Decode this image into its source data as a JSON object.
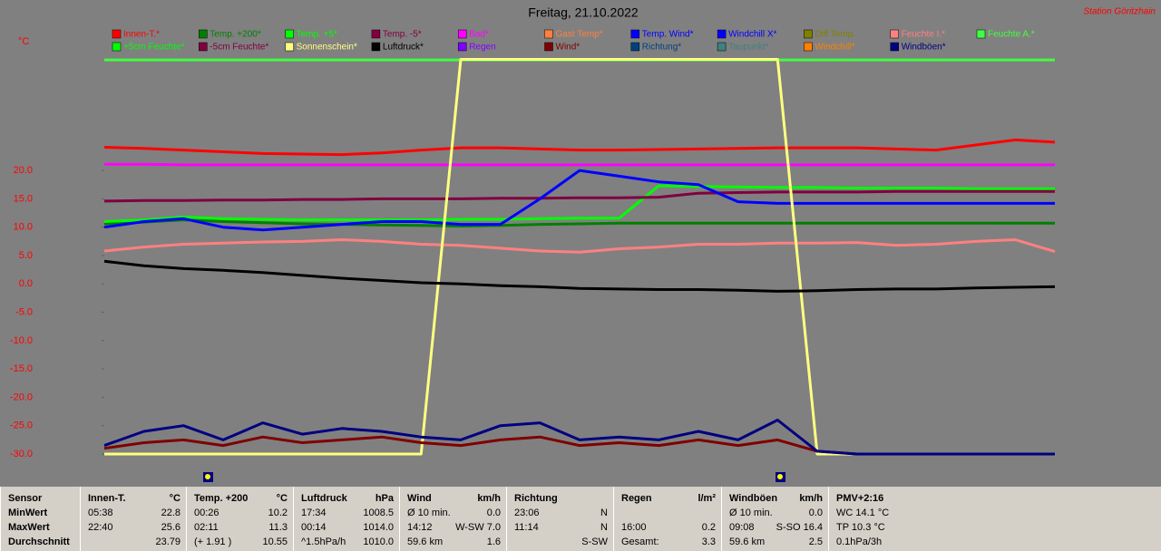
{
  "chart_data": {
    "type": "line",
    "title": "Freitag, 21.10.2022",
    "station": "Station Göritzhain",
    "y_label": "°C",
    "x": [
      0,
      1,
      2,
      3,
      4,
      5,
      6,
      7,
      8,
      9,
      10,
      11,
      12,
      13,
      14,
      15,
      16,
      17,
      18,
      19,
      20,
      21,
      22,
      23,
      24
    ],
    "xlim": [
      0,
      24
    ],
    "ylim": [
      -30,
      40
    ],
    "yticks": [
      {
        "value": 20,
        "label": "20.0"
      },
      {
        "value": 15,
        "label": "15.0"
      },
      {
        "value": 10,
        "label": "10.0"
      },
      {
        "value": 5,
        "label": "5.0"
      },
      {
        "value": 0,
        "label": "0.0"
      },
      {
        "value": -5,
        "label": "-5.0"
      },
      {
        "value": -10,
        "label": "-10.0"
      },
      {
        "value": -15,
        "label": "-15.0"
      },
      {
        "value": -20,
        "label": "-20.0"
      },
      {
        "value": -25,
        "label": "-25.0"
      },
      {
        "value": -30,
        "label": "-30.0"
      }
    ],
    "series": [
      {
        "name": "Innen-T.*",
        "color": "#ff0000",
        "values": [
          24.1,
          23.9,
          23.6,
          23.3,
          23.0,
          22.9,
          22.8,
          23.1,
          23.6,
          24.0,
          24.0,
          23.8,
          23.6,
          23.6,
          23.7,
          23.8,
          23.9,
          24.0,
          24.0,
          24.0,
          23.8,
          23.6,
          24.5,
          25.4,
          25.0
        ]
      },
      {
        "name": "Temp. +200*",
        "color": "#008000",
        "values": [
          10.6,
          10.9,
          11.3,
          11.0,
          10.8,
          10.6,
          10.5,
          10.4,
          10.3,
          10.2,
          10.3,
          10.5,
          10.6,
          10.7,
          10.7,
          10.7,
          10.7,
          10.7,
          10.7,
          10.7,
          10.7,
          10.7,
          10.7,
          10.7,
          10.7
        ]
      },
      {
        "name": "Temp. +5*",
        "color": "#00ff00",
        "values": [
          11.0,
          11.3,
          11.8,
          11.5,
          11.4,
          11.3,
          11.3,
          11.3,
          11.3,
          11.4,
          11.4,
          11.5,
          11.6,
          11.6,
          17.3,
          17.2,
          17.1,
          17.0,
          17.0,
          16.9,
          16.9,
          16.9,
          16.8,
          16.8,
          16.8
        ]
      },
      {
        "name": "Temp. -5*",
        "color": "#800040",
        "values": [
          14.6,
          14.7,
          14.7,
          14.8,
          14.8,
          14.9,
          14.9,
          15.0,
          15.0,
          15.0,
          15.1,
          15.1,
          15.2,
          15.2,
          15.3,
          16.0,
          16.1,
          16.2,
          16.2,
          16.2,
          16.3,
          16.3,
          16.3,
          16.3,
          16.3
        ]
      },
      {
        "name": "Bad*",
        "color": "#ff00ff",
        "values": [
          21.1,
          21.1,
          21.0,
          21.0,
          21.0,
          21.0,
          21.0,
          21.0,
          21.0,
          21.0,
          21.0,
          21.0,
          21.0,
          21.0,
          21.0,
          21.0,
          21.0,
          21.0,
          21.0,
          21.0,
          21.0,
          21.0,
          21.0,
          21.0,
          21.0
        ]
      },
      {
        "name": "Gast Temp*",
        "color": "#ff8040",
        "values": [
          null,
          null,
          null,
          null,
          null,
          null,
          null,
          null,
          null,
          null,
          null,
          null,
          null,
          null,
          null,
          null,
          null,
          null,
          null,
          null,
          null,
          null,
          null,
          null,
          null
        ]
      },
      {
        "name": "Temp. Wind*",
        "color": "#0000ff",
        "values": [
          10.0,
          11.0,
          11.5,
          10.0,
          9.5,
          10.0,
          10.5,
          11.0,
          11.0,
          10.5,
          10.5,
          15.0,
          20.0,
          19.0,
          18.0,
          17.5,
          14.5,
          14.2,
          14.2,
          14.2,
          14.2,
          14.2,
          14.2,
          14.2,
          14.2
        ]
      },
      {
        "name": "Windchill X*",
        "color": "#0000ff",
        "values": [
          null,
          null,
          null,
          null,
          null,
          null,
          null,
          null,
          null,
          null,
          null,
          null,
          null,
          null,
          null,
          null,
          null,
          null,
          null,
          null,
          null,
          null,
          null,
          null,
          null
        ]
      },
      {
        "name": "Diff Temp.",
        "color": "#808000",
        "values": [
          null,
          null,
          null,
          null,
          null,
          null,
          null,
          null,
          null,
          null,
          null,
          null,
          null,
          null,
          null,
          null,
          null,
          null,
          null,
          null,
          null,
          null,
          null,
          null,
          null
        ]
      },
      {
        "name": "Feuchte I.*",
        "color": "#ff8080",
        "values": [
          5.8,
          6.5,
          7.0,
          7.2,
          7.4,
          7.5,
          7.8,
          7.5,
          7.0,
          6.8,
          6.3,
          5.8,
          5.6,
          6.2,
          6.5,
          7.0,
          7.0,
          7.2,
          7.2,
          7.3,
          6.8,
          7.0,
          7.5,
          7.8,
          5.7
        ]
      },
      {
        "name": "Feuchte A.*",
        "color": "#40ff40",
        "values": [
          39.5,
          39.5,
          39.5,
          39.5,
          39.5,
          39.5,
          39.5,
          39.5,
          39.5,
          39.5,
          39.5,
          39.5,
          39.5,
          39.5,
          39.5,
          39.5,
          39.5,
          39.5,
          39.5,
          39.5,
          39.5,
          39.5,
          39.5,
          39.5,
          39.5
        ]
      },
      {
        "name": "+5cm Feuchte*",
        "color": "#00ff00",
        "values": [
          null,
          null,
          null,
          null,
          null,
          null,
          null,
          null,
          null,
          null,
          null,
          null,
          null,
          null,
          null,
          null,
          null,
          null,
          null,
          null,
          null,
          null,
          null,
          null,
          null
        ]
      },
      {
        "name": "-5cm Feuchte*",
        "color": "#800040",
        "values": [
          null,
          null,
          null,
          null,
          null,
          null,
          null,
          null,
          null,
          null,
          null,
          null,
          null,
          null,
          null,
          null,
          null,
          null,
          null,
          null,
          null,
          null,
          null,
          null,
          null
        ]
      },
      {
        "name": "Sonnenschein*",
        "color": "#ffff80",
        "values": [
          -30,
          -30,
          -30,
          -30,
          -30,
          -30,
          -30,
          -30,
          -30,
          39.6,
          39.6,
          39.6,
          39.6,
          39.6,
          39.6,
          39.6,
          39.6,
          39.6,
          -30,
          -30,
          -30,
          -30,
          -30,
          -30,
          -30
        ]
      },
      {
        "name": "Luftdruck*",
        "color": "#000000",
        "values": [
          4.0,
          3.2,
          2.7,
          2.4,
          2.0,
          1.5,
          1.0,
          0.6,
          0.2,
          0.0,
          -0.3,
          -0.5,
          -0.8,
          -0.9,
          -1.0,
          -1.0,
          -1.1,
          -1.3,
          -1.2,
          -1.0,
          -0.9,
          -0.9,
          -0.7,
          -0.6,
          -0.5
        ]
      },
      {
        "name": "Regen",
        "color": "#8000ff",
        "values": [
          null,
          null,
          null,
          null,
          null,
          null,
          null,
          null,
          null,
          null,
          null,
          null,
          null,
          null,
          null,
          null,
          null,
          null,
          null,
          null,
          null,
          null,
          null,
          null,
          null
        ]
      },
      {
        "name": "Wind*",
        "color": "#800000",
        "values": [
          -29.0,
          -28.0,
          -27.5,
          -28.5,
          -27.0,
          -28.0,
          -27.5,
          -27.0,
          -28.0,
          -28.5,
          -27.5,
          -27.0,
          -28.5,
          -28.0,
          -28.5,
          -27.5,
          -28.5,
          -27.5,
          -29.5,
          -30,
          -30,
          -30,
          -30,
          -30,
          -30
        ]
      },
      {
        "name": "Richtung*",
        "color": "#004080",
        "values": [
          null,
          null,
          null,
          null,
          null,
          null,
          null,
          null,
          null,
          null,
          null,
          null,
          null,
          null,
          null,
          null,
          null,
          null,
          null,
          null,
          null,
          null,
          null,
          null,
          null
        ]
      },
      {
        "name": "Taupunkt*",
        "color": "#408080",
        "values": [
          null,
          null,
          null,
          null,
          null,
          null,
          null,
          null,
          null,
          null,
          null,
          null,
          null,
          null,
          null,
          null,
          null,
          null,
          null,
          null,
          null,
          null,
          null,
          null,
          null
        ]
      },
      {
        "name": "Windchill*",
        "color": "#ff8000",
        "values": [
          null,
          null,
          null,
          null,
          null,
          null,
          null,
          null,
          null,
          null,
          null,
          null,
          null,
          null,
          null,
          null,
          null,
          null,
          null,
          null,
          null,
          null,
          null,
          null,
          null
        ]
      },
      {
        "name": "Windböen*",
        "color": "#000080",
        "values": [
          -28.5,
          -26.0,
          -25.0,
          -27.5,
          -24.5,
          -26.5,
          -25.5,
          -26.0,
          -27.0,
          -27.5,
          -25.0,
          -24.5,
          -27.5,
          -27.0,
          -27.5,
          -26.0,
          -27.5,
          -24.0,
          -29.5,
          -30,
          -30,
          -30,
          -30,
          -30,
          -30
        ]
      }
    ]
  },
  "table": {
    "columns": [
      {
        "title": "Sensor",
        "rows": [
          [
            "MinWert"
          ],
          [
            "MaxWert"
          ],
          [
            "Durchschnitt"
          ]
        ]
      },
      {
        "title": "Innen-T.",
        "unit": "°C",
        "rows": [
          [
            "05:38",
            "22.8"
          ],
          [
            "22:40",
            "25.6"
          ],
          [
            null,
            "23.79"
          ]
        ]
      },
      {
        "title": "Temp. +200",
        "unit": "°C",
        "rows": [
          [
            "00:26",
            "10.2"
          ],
          [
            "02:11",
            "11.3"
          ],
          [
            "(+ 1.91 )",
            "10.55"
          ]
        ]
      },
      {
        "title": "Luftdruck",
        "unit": "hPa",
        "rows": [
          [
            "17:34",
            "1008.5"
          ],
          [
            "00:14",
            "1014.0"
          ],
          [
            "^1.5hPa/h",
            "1010.0"
          ]
        ]
      },
      {
        "title": "Wind",
        "unit": "km/h",
        "rows": [
          [
            "Ø 10 min.",
            "0.0"
          ],
          [
            "14:12",
            "W-SW 7.0"
          ],
          [
            "59.6 km",
            "1.6"
          ]
        ]
      },
      {
        "title": "Richtung",
        "rows": [
          [
            "23:06",
            "N"
          ],
          [
            "11:14",
            "N"
          ],
          [
            null,
            "S-SW"
          ]
        ]
      },
      {
        "title": "Regen",
        "unit": "l/m²",
        "rows": [
          [],
          [
            "16:00",
            "0.2"
          ],
          [
            "Gesamt:",
            "3.3"
          ]
        ]
      },
      {
        "title": "Windböen",
        "unit": "km/h",
        "rows": [
          [
            "Ø 10 min.",
            "0.0"
          ],
          [
            "09:08",
            "S-SO 16.4"
          ],
          [
            "59.6 km",
            "2.5"
          ]
        ]
      },
      {
        "title": "PMV+2:16",
        "rows": [
          [
            "WC 14.1 °C"
          ],
          [
            "TP 10.3 °C"
          ],
          [
            "0.1hPa/3h"
          ]
        ]
      }
    ]
  }
}
